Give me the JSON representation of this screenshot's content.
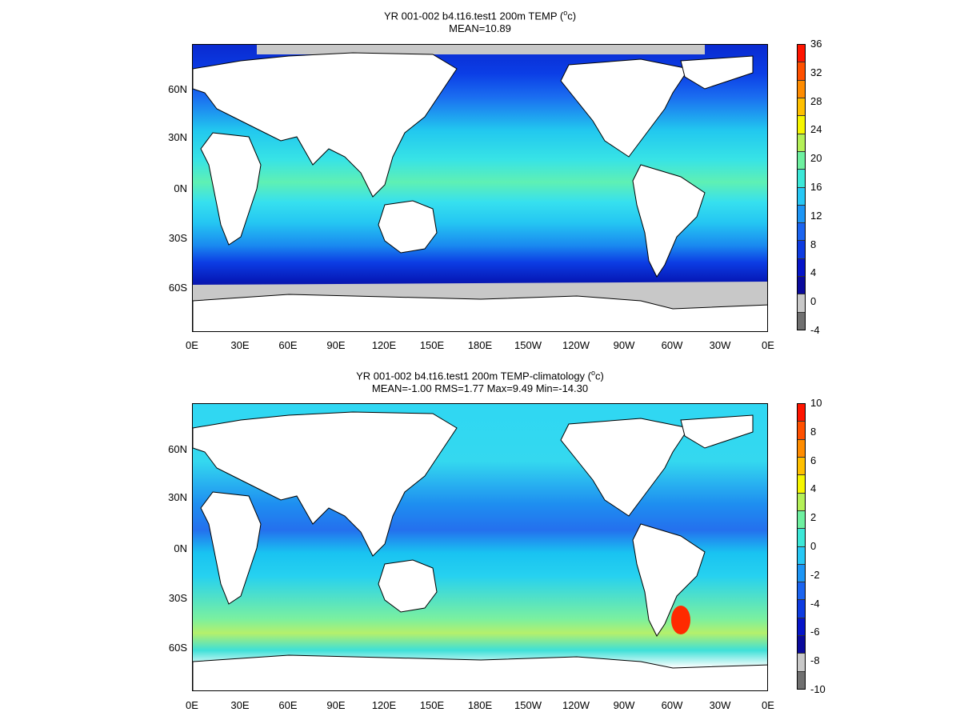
{
  "panel1": {
    "title_line1": "YR 001-002 b4.t16.test1 200m TEMP (",
    "title_sup": "o",
    "title_unit_end": "c)",
    "title_line2": "MEAN=10.89",
    "colorbar_ticks": [
      "36",
      "32",
      "28",
      "24",
      "20",
      "16",
      "12",
      "8",
      "4",
      "0",
      "-4"
    ],
    "colorbar_colors": [
      "#ff1500",
      "#ff5000",
      "#ff8c00",
      "#ffc000",
      "#f6f600",
      "#b4f058",
      "#6ef0a0",
      "#3ce8d8",
      "#27c8f5",
      "#1d96f5",
      "#1b64f0",
      "#0e3be0",
      "#0615c8",
      "#0a0a9c",
      "#c8c8c8",
      "#707070"
    ]
  },
  "panel2": {
    "title_line1": "YR 001-002 b4.t16.test1 200m TEMP-climatology (",
    "title_sup": "o",
    "title_unit_end": "c)",
    "title_line2": "MEAN=-1.00   RMS=1.77   Max=9.49   Min=-14.30",
    "colorbar_ticks": [
      "10",
      "8",
      "6",
      "4",
      "2",
      "0",
      "-2",
      "-4",
      "-6",
      "-8",
      "-10"
    ],
    "colorbar_colors": [
      "#ff1500",
      "#ff5000",
      "#ff8c00",
      "#ffc000",
      "#f6f600",
      "#b4f058",
      "#6ef0a0",
      "#3ce8d8",
      "#27c8f5",
      "#1d96f5",
      "#1b64f0",
      "#0e3be0",
      "#0615c8",
      "#0a0a9c",
      "#c8c8c8",
      "#707070"
    ]
  },
  "lat_labels": [
    "60N",
    "30N",
    "0N",
    "30S",
    "60S"
  ],
  "lon_labels": [
    "0E",
    "30E",
    "60E",
    "90E",
    "120E",
    "150E",
    "180E",
    "150W",
    "120W",
    "90W",
    "60W",
    "30W",
    "0E"
  ]
}
